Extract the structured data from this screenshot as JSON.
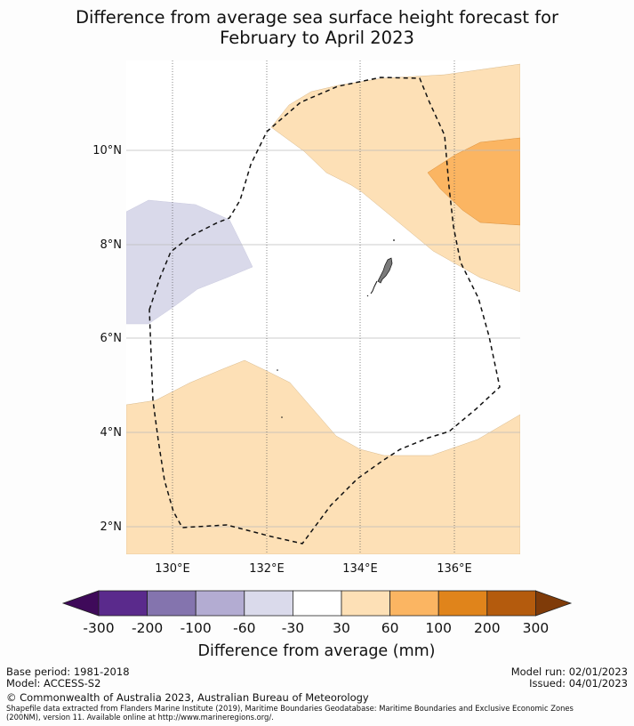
{
  "title": {
    "line1": "Difference from average sea surface height forecast for",
    "line2": "February to April 2023"
  },
  "map": {
    "lon_ticks": [
      "130°E",
      "132°E",
      "134°E",
      "136°E"
    ],
    "lat_ticks": [
      "10°N",
      "8°N",
      "6°N",
      "4°N",
      "2°N"
    ],
    "extent": {
      "lon_min": 129.0,
      "lon_max": 137.4,
      "lat_min": 1.4,
      "lat_max": 11.9
    },
    "regions": [
      {
        "name": "light-purple-region",
        "category": "-60 to -30",
        "color": "#d9d9ea"
      },
      {
        "name": "light-orange-north-region",
        "category": "30 to 60",
        "color": "#fde0b6"
      },
      {
        "name": "orange-region",
        "category": "60 to 100",
        "color": "#fbb562"
      },
      {
        "name": "light-orange-south-region",
        "category": "30 to 60",
        "color": "#fde0b6"
      }
    ],
    "eez_boundary": "Palau EEZ (dashed)",
    "landmass": "Palau"
  },
  "colorbar": {
    "colors": [
      "#3f0a5a",
      "#5a2a8c",
      "#8474ae",
      "#b3acd2",
      "#dadaeb",
      "#ffffff",
      "#fde0b6",
      "#fbb562",
      "#e0841b",
      "#b45b0d",
      "#7f3b09"
    ],
    "labels": [
      "-300",
      "-200",
      "-100",
      "-60",
      "-30",
      "30",
      "60",
      "100",
      "200",
      "300"
    ],
    "title": "Difference from average (mm)"
  },
  "footer": {
    "base_period": "Base period: 1981-2018",
    "model": "Model: ACCESS-S2",
    "model_run": "Model run: 02/01/2023",
    "issued": "Issued: 04/01/2023",
    "copyright": "© Commonwealth of Australia 2023, Australian Bureau of Meteorology",
    "shapefile_line1": "Shapefile data extracted from Flanders Marine Institute (2019), Maritime Boundaries Geodatabase: Maritime Boundaries and Exclusive Economic Zones",
    "shapefile_line2": "(200NM), version 11. Available online at http://www.marineregions.org/."
  }
}
